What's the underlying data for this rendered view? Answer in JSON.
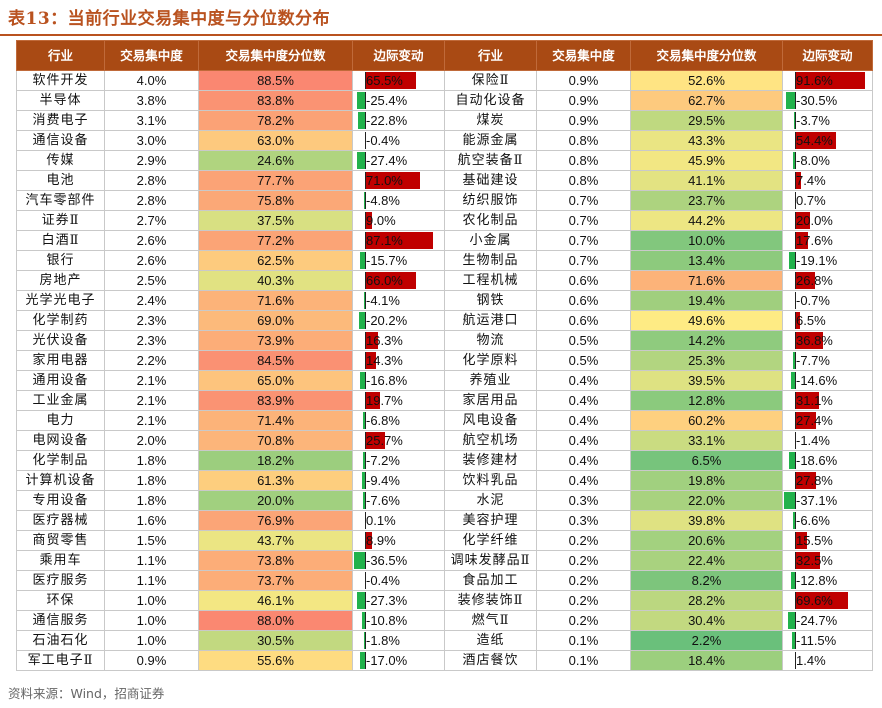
{
  "title": "表13：当前行业交易集中度与分位数分布",
  "headers": [
    "行业",
    "交易集中度",
    "交易集中度分位数",
    "边际变动",
    "行业",
    "交易集中度",
    "交易集中度分位数",
    "边际变动"
  ],
  "left_rows": [
    {
      "name": "软件开发",
      "conc": "4.0%",
      "pct": "88.5%",
      "chg": "65.5%"
    },
    {
      "name": "半导体",
      "conc": "3.8%",
      "pct": "83.8%",
      "chg": "-25.4%"
    },
    {
      "name": "消费电子",
      "conc": "3.1%",
      "pct": "78.2%",
      "chg": "-22.8%"
    },
    {
      "name": "通信设备",
      "conc": "3.0%",
      "pct": "63.0%",
      "chg": "-0.4%"
    },
    {
      "name": "传媒",
      "conc": "2.9%",
      "pct": "24.6%",
      "chg": "-27.4%"
    },
    {
      "name": "电池",
      "conc": "2.8%",
      "pct": "77.7%",
      "chg": "71.0%"
    },
    {
      "name": "汽车零部件",
      "conc": "2.8%",
      "pct": "75.8%",
      "chg": "-4.8%"
    },
    {
      "name": "证券Ⅱ",
      "conc": "2.7%",
      "pct": "37.5%",
      "chg": "9.0%"
    },
    {
      "name": "白酒Ⅱ",
      "conc": "2.6%",
      "pct": "77.2%",
      "chg": "87.1%"
    },
    {
      "name": "银行",
      "conc": "2.6%",
      "pct": "62.5%",
      "chg": "-15.7%"
    },
    {
      "name": "房地产",
      "conc": "2.5%",
      "pct": "40.3%",
      "chg": "66.0%"
    },
    {
      "name": "光学光电子",
      "conc": "2.4%",
      "pct": "71.6%",
      "chg": "-4.1%"
    },
    {
      "name": "化学制药",
      "conc": "2.3%",
      "pct": "69.0%",
      "chg": "-20.2%"
    },
    {
      "name": "光伏设备",
      "conc": "2.3%",
      "pct": "73.9%",
      "chg": "16.3%"
    },
    {
      "name": "家用电器",
      "conc": "2.2%",
      "pct": "84.5%",
      "chg": "14.3%"
    },
    {
      "name": "通用设备",
      "conc": "2.1%",
      "pct": "65.0%",
      "chg": "-16.8%"
    },
    {
      "name": "工业金属",
      "conc": "2.1%",
      "pct": "83.9%",
      "chg": "19.7%"
    },
    {
      "name": "电力",
      "conc": "2.1%",
      "pct": "71.4%",
      "chg": "-6.8%"
    },
    {
      "name": "电网设备",
      "conc": "2.0%",
      "pct": "70.8%",
      "chg": "25.7%"
    },
    {
      "name": "化学制品",
      "conc": "1.8%",
      "pct": "18.2%",
      "chg": "-7.2%"
    },
    {
      "name": "计算机设备",
      "conc": "1.8%",
      "pct": "61.3%",
      "chg": "-9.4%"
    },
    {
      "name": "专用设备",
      "conc": "1.8%",
      "pct": "20.0%",
      "chg": "-7.6%"
    },
    {
      "name": "医疗器械",
      "conc": "1.6%",
      "pct": "76.9%",
      "chg": "0.1%"
    },
    {
      "name": "商贸零售",
      "conc": "1.5%",
      "pct": "43.7%",
      "chg": "8.9%"
    },
    {
      "name": "乘用车",
      "conc": "1.1%",
      "pct": "73.8%",
      "chg": "-36.5%"
    },
    {
      "name": "医疗服务",
      "conc": "1.1%",
      "pct": "73.7%",
      "chg": "-0.4%"
    },
    {
      "name": "环保",
      "conc": "1.0%",
      "pct": "46.1%",
      "chg": "-27.3%"
    },
    {
      "name": "通信服务",
      "conc": "1.0%",
      "pct": "88.0%",
      "chg": "-10.8%"
    },
    {
      "name": "石油石化",
      "conc": "1.0%",
      "pct": "30.5%",
      "chg": "-1.8%"
    },
    {
      "name": "军工电子Ⅱ",
      "conc": "0.9%",
      "pct": "55.6%",
      "chg": "-17.0%"
    }
  ],
  "right_rows": [
    {
      "name": "保险Ⅱ",
      "conc": "0.9%",
      "pct": "52.6%",
      "chg": "91.6%"
    },
    {
      "name": "自动化设备",
      "conc": "0.9%",
      "pct": "62.7%",
      "chg": "-30.5%"
    },
    {
      "name": "煤炭",
      "conc": "0.9%",
      "pct": "29.5%",
      "chg": "-3.7%"
    },
    {
      "name": "能源金属",
      "conc": "0.8%",
      "pct": "43.3%",
      "chg": "54.4%"
    },
    {
      "name": "航空装备Ⅱ",
      "conc": "0.8%",
      "pct": "45.9%",
      "chg": "-8.0%"
    },
    {
      "name": "基础建设",
      "conc": "0.8%",
      "pct": "41.1%",
      "chg": "7.4%"
    },
    {
      "name": "纺织服饰",
      "conc": "0.7%",
      "pct": "23.7%",
      "chg": "0.7%"
    },
    {
      "name": "农化制品",
      "conc": "0.7%",
      "pct": "44.2%",
      "chg": "20.0%"
    },
    {
      "name": "小金属",
      "conc": "0.7%",
      "pct": "10.0%",
      "chg": "17.6%"
    },
    {
      "name": "生物制品",
      "conc": "0.7%",
      "pct": "13.4%",
      "chg": "-19.1%"
    },
    {
      "name": "工程机械",
      "conc": "0.6%",
      "pct": "71.6%",
      "chg": "26.8%"
    },
    {
      "name": "钢铁",
      "conc": "0.6%",
      "pct": "19.4%",
      "chg": "-0.7%"
    },
    {
      "name": "航运港口",
      "conc": "0.6%",
      "pct": "49.6%",
      "chg": "6.5%"
    },
    {
      "name": "物流",
      "conc": "0.5%",
      "pct": "14.2%",
      "chg": "36.8%"
    },
    {
      "name": "化学原料",
      "conc": "0.5%",
      "pct": "25.3%",
      "chg": "-7.7%"
    },
    {
      "name": "养殖业",
      "conc": "0.4%",
      "pct": "39.5%",
      "chg": "-14.6%"
    },
    {
      "name": "家居用品",
      "conc": "0.4%",
      "pct": "12.8%",
      "chg": "31.1%"
    },
    {
      "name": "风电设备",
      "conc": "0.4%",
      "pct": "60.2%",
      "chg": "27.4%"
    },
    {
      "name": "航空机场",
      "conc": "0.4%",
      "pct": "33.1%",
      "chg": "-1.4%"
    },
    {
      "name": "装修建材",
      "conc": "0.4%",
      "pct": "6.5%",
      "chg": "-18.6%"
    },
    {
      "name": "饮料乳品",
      "conc": "0.4%",
      "pct": "19.8%",
      "chg": "27.8%"
    },
    {
      "name": "水泥",
      "conc": "0.3%",
      "pct": "22.0%",
      "chg": "-37.1%"
    },
    {
      "name": "美容护理",
      "conc": "0.3%",
      "pct": "39.8%",
      "chg": "-6.6%"
    },
    {
      "name": "化学纤维",
      "conc": "0.2%",
      "pct": "20.6%",
      "chg": "15.5%"
    },
    {
      "name": "调味发酵品Ⅱ",
      "conc": "0.2%",
      "pct": "22.4%",
      "chg": "32.5%"
    },
    {
      "name": "食品加工",
      "conc": "0.2%",
      "pct": "8.2%",
      "chg": "-12.8%"
    },
    {
      "name": "装修装饰Ⅱ",
      "conc": "0.2%",
      "pct": "28.2%",
      "chg": "69.6%"
    },
    {
      "name": "燃气Ⅱ",
      "conc": "0.2%",
      "pct": "30.4%",
      "chg": "-24.7%"
    },
    {
      "name": "造纸",
      "conc": "0.1%",
      "pct": "2.2%",
      "chg": "-11.5%"
    },
    {
      "name": "酒店餐饮",
      "conc": "0.1%",
      "pct": "18.4%",
      "chg": "1.4%"
    }
  ],
  "source": "资料来源：Wind，招商证券",
  "colors": {
    "title": "#b9521f",
    "header_bg": "#a94a14",
    "bar_pos": "#c00000",
    "bar_neg": "#22b24c"
  }
}
